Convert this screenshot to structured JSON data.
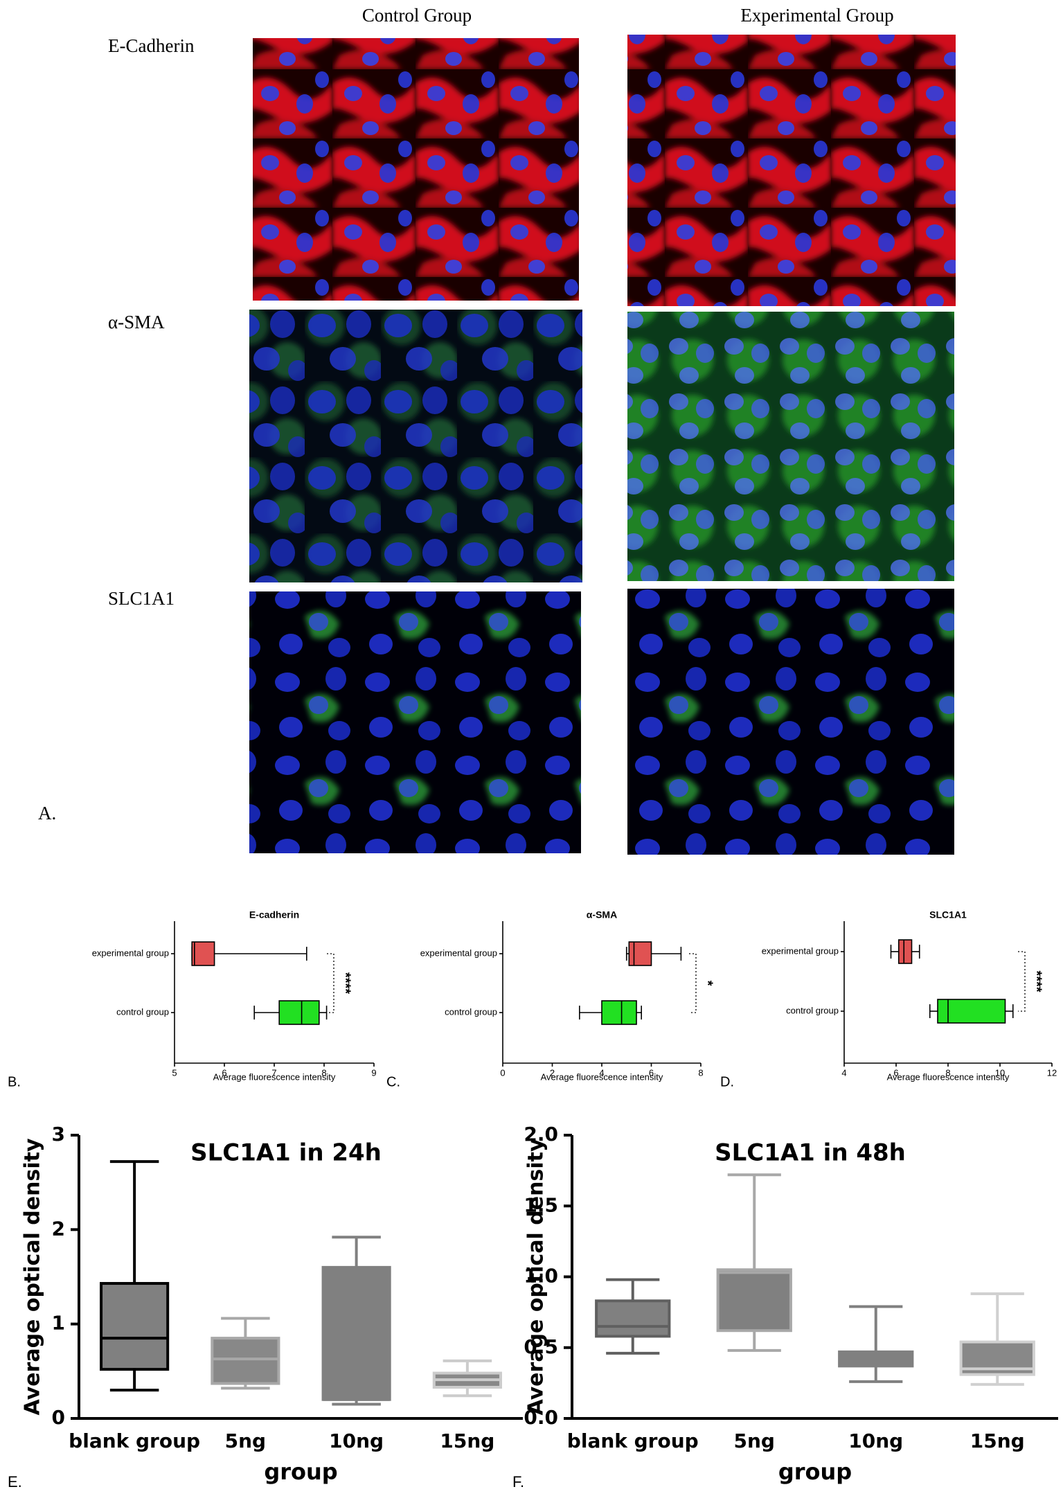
{
  "panel_a": {
    "label": "A.",
    "columns": [
      "Control Group",
      "Experimental Group"
    ],
    "rows": [
      "E-Cadherin",
      "α-SMA",
      "SLC1A1"
    ]
  },
  "chart_data": [
    {
      "type": "box",
      "orientation": "horizontal",
      "panel_label": "B.",
      "title": "E-cadherin",
      "xlabel": "Average fluorescence intensity",
      "categories": [
        "experimental group",
        "control group"
      ],
      "boxes": [
        {
          "min": 5.35,
          "q1": 5.35,
          "median": 5.4,
          "q3": 5.8,
          "max": 7.65
        },
        {
          "min": 6.6,
          "q1": 7.1,
          "median": 7.55,
          "q3": 7.9,
          "max": 8.05
        }
      ],
      "fill_colors": [
        "#e05252",
        "#22e022"
      ],
      "edge_colors": [
        "#000000",
        "#000000"
      ],
      "xlim": [
        5,
        9
      ],
      "xticks": [
        5,
        6,
        7,
        8,
        9
      ],
      "annotation": "****"
    },
    {
      "type": "box",
      "orientation": "horizontal",
      "panel_label": "C.",
      "title": "α-SMA",
      "xlabel": "Average fluorescence intensity",
      "categories": [
        "experimental group",
        "control group"
      ],
      "boxes": [
        {
          "min": 5.0,
          "q1": 5.1,
          "median": 5.3,
          "q3": 6.0,
          "max": 7.2
        },
        {
          "min": 3.1,
          "q1": 4.0,
          "median": 4.8,
          "q3": 5.4,
          "max": 5.6
        }
      ],
      "fill_colors": [
        "#e05252",
        "#22e022"
      ],
      "edge_colors": [
        "#000000",
        "#000000"
      ],
      "xlim": [
        0,
        8
      ],
      "xticks": [
        0,
        2,
        4,
        6,
        8
      ],
      "annotation": "*"
    },
    {
      "type": "box",
      "orientation": "horizontal",
      "panel_label": "D.",
      "title": "SLC1A1",
      "xlabel": "Average fluorescence intensity",
      "categories": [
        "experimental group",
        "control group"
      ],
      "boxes": [
        {
          "min": 5.8,
          "q1": 6.1,
          "median": 6.3,
          "q3": 6.6,
          "max": 6.9
        },
        {
          "min": 7.3,
          "q1": 7.6,
          "median": 8.0,
          "q3": 10.2,
          "max": 10.5
        }
      ],
      "fill_colors": [
        "#e05252",
        "#22e022"
      ],
      "edge_colors": [
        "#000000",
        "#000000"
      ],
      "xlim": [
        4,
        12
      ],
      "xticks": [
        4,
        6,
        8,
        10,
        12
      ],
      "annotation": "****"
    },
    {
      "type": "box",
      "orientation": "vertical",
      "panel_label": "E.",
      "title": "SLC1A1 in 24h",
      "ylabel": "Average optical density",
      "xlabel": "group",
      "categories": [
        "blank group",
        "5ng",
        "10ng",
        "15ng"
      ],
      "boxes": [
        {
          "min": 0.3,
          "q1": 0.52,
          "median": 0.85,
          "q3": 1.43,
          "max": 2.72
        },
        {
          "min": 0.32,
          "q1": 0.37,
          "median": 0.63,
          "q3": 0.85,
          "max": 1.06
        },
        {
          "min": 0.15,
          "q1": 0.2,
          "median": 0.2,
          "q3": 1.6,
          "max": 1.92
        },
        {
          "min": 0.24,
          "q1": 0.33,
          "median": 0.41,
          "q3": 0.48,
          "max": 0.61
        }
      ],
      "fill_colors": [
        "#808080",
        "#888888",
        "#808080",
        "#888888"
      ],
      "edge_colors": [
        "#000000",
        "#a8a8a8",
        "#808080",
        "#cccccc"
      ],
      "ylim": [
        0,
        3
      ],
      "yticks": [
        0,
        1,
        2,
        3
      ]
    },
    {
      "type": "box",
      "orientation": "vertical",
      "panel_label": "F.",
      "title": "SLC1A1 in 48h",
      "ylabel": "Average optical density",
      "xlabel": "group",
      "categories": [
        "blank group",
        "5ng",
        "10ng",
        "15ng"
      ],
      "boxes": [
        {
          "min": 0.46,
          "q1": 0.58,
          "median": 0.65,
          "q3": 0.83,
          "max": 0.98
        },
        {
          "min": 0.48,
          "q1": 0.62,
          "median": 1.03,
          "q3": 1.05,
          "max": 1.72
        },
        {
          "min": 0.26,
          "q1": 0.37,
          "median": 0.45,
          "q3": 0.47,
          "max": 0.79
        },
        {
          "min": 0.24,
          "q1": 0.31,
          "median": 0.35,
          "q3": 0.54,
          "max": 0.88
        }
      ],
      "fill_colors": [
        "#808080",
        "#808080",
        "#808080",
        "#888888"
      ],
      "edge_colors": [
        "#606060",
        "#a8a8a8",
        "#808080",
        "#d0d0d0"
      ],
      "ylim": [
        0,
        2
      ],
      "yticks": [
        {
          "value": 0,
          "label": "0.0"
        },
        {
          "value": 0.5,
          "label": "0.5"
        },
        {
          "value": 1,
          "label": "1.0"
        },
        {
          "value": 1.5,
          "label": "1.5"
        },
        {
          "value": 2,
          "label": "2.0"
        }
      ]
    }
  ]
}
